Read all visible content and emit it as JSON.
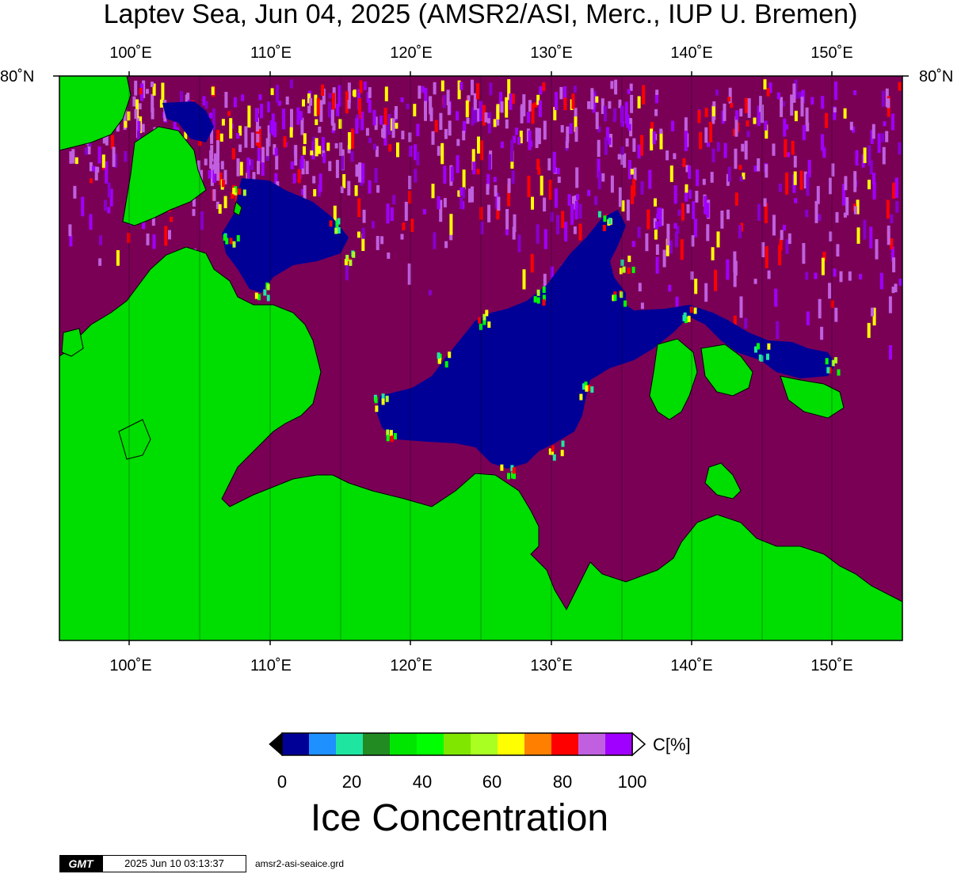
{
  "title": "Laptev Sea, Jun 04, 2025 (AMSR2/ASI, Merc., IUP U. Bremen)",
  "lon_ticks": [
    "100˚E",
    "110˚E",
    "120˚E",
    "130˚E",
    "140˚E",
    "150˚E"
  ],
  "lat_label_left": "80˚N",
  "lat_label_right": "80˚N",
  "colorbar": {
    "colors": [
      "#000096",
      "#1e90ff",
      "#1ee6a0",
      "#228b22",
      "#00e600",
      "#00ff00",
      "#80e600",
      "#aaff22",
      "#ffff00",
      "#ff8000",
      "#ff0000",
      "#c060e0",
      "#a000ff"
    ],
    "tick_labels": [
      "0",
      "20",
      "40",
      "60",
      "80",
      "100"
    ],
    "unit": "C[%]",
    "title": "Ice Concentration"
  },
  "colors": {
    "land": "#00dd00",
    "sea_full": "#7a0056",
    "open_water": "#000096"
  },
  "footer": {
    "logo": "GMT",
    "timestamp": "2025 Jun 10 03:13:37",
    "filename": "amsr2-asi-seaice.grd"
  }
}
